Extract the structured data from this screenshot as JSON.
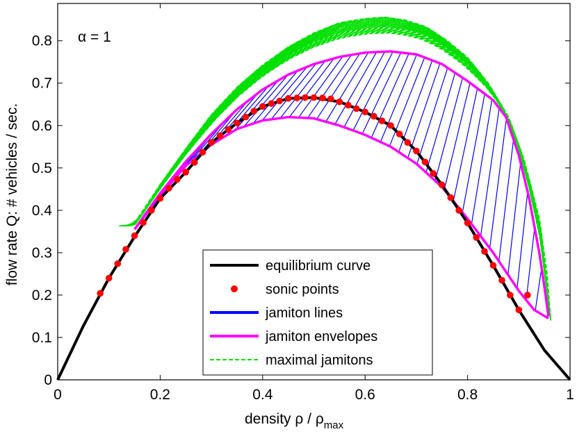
{
  "chart_data": {
    "type": "line",
    "annotation": "α = 1",
    "xlabel": "density ρ / ρ",
    "xlabel_sub": "max",
    "ylabel": "flow rate Q: # vehicles / sec.",
    "xlim": [
      0,
      1
    ],
    "ylim": [
      0,
      0.888
    ],
    "xticks": [
      "0",
      "0.2",
      "0.4",
      "0.6",
      "0.8",
      "1"
    ],
    "yticks": [
      "0",
      "0.1",
      "0.2",
      "0.3",
      "0.4",
      "0.5",
      "0.6",
      "0.7",
      "0.8"
    ],
    "colors": {
      "equilibrium": "#000000",
      "sonic": "#ff0000",
      "jamiton_lines": "#0000ff",
      "envelope": "#ff00ff",
      "maximal": "#00e000"
    },
    "series": [
      {
        "name": "equilibrium curve",
        "style": "solid",
        "x": [
          0,
          0.05,
          0.1,
          0.15,
          0.2,
          0.25,
          0.3,
          0.35,
          0.4,
          0.45,
          0.5,
          0.55,
          0.6,
          0.65,
          0.7,
          0.75,
          0.8,
          0.85,
          0.9,
          0.95,
          1.0
        ],
        "y": [
          0,
          0.127,
          0.24,
          0.338,
          0.428,
          0.49,
          0.56,
          0.606,
          0.645,
          0.664,
          0.666,
          0.656,
          0.632,
          0.6,
          0.54,
          0.46,
          0.37,
          0.27,
          0.165,
          0.07,
          0
        ]
      },
      {
        "name": "sonic points",
        "style": "markers",
        "x": [
          0.083,
          0.1,
          0.117,
          0.133,
          0.15,
          0.167,
          0.183,
          0.2,
          0.217,
          0.233,
          0.25,
          0.267,
          0.283,
          0.3,
          0.317,
          0.333,
          0.35,
          0.367,
          0.383,
          0.4,
          0.417,
          0.433,
          0.45,
          0.467,
          0.483,
          0.5,
          0.517,
          0.533,
          0.55,
          0.567,
          0.583,
          0.6,
          0.617,
          0.633,
          0.65,
          0.667,
          0.683,
          0.7,
          0.717,
          0.733,
          0.75,
          0.767,
          0.783,
          0.8,
          0.817,
          0.833,
          0.85,
          0.867,
          0.883,
          0.9,
          0.917
        ],
        "y": [
          0.204,
          0.24,
          0.274,
          0.308,
          0.34,
          0.371,
          0.4,
          0.428,
          0.452,
          0.473,
          0.49,
          0.513,
          0.537,
          0.56,
          0.576,
          0.591,
          0.606,
          0.62,
          0.634,
          0.645,
          0.652,
          0.658,
          0.664,
          0.665,
          0.666,
          0.666,
          0.665,
          0.663,
          0.656,
          0.648,
          0.64,
          0.632,
          0.622,
          0.611,
          0.6,
          0.58,
          0.56,
          0.54,
          0.514,
          0.487,
          0.46,
          0.43,
          0.4,
          0.37,
          0.336,
          0.303,
          0.27,
          0.235,
          0.2,
          0.165,
          0.2
        ]
      },
      {
        "name": "jamiton envelopes",
        "style": "solid",
        "upper": {
          "x": [
            0.15,
            0.2,
            0.25,
            0.3,
            0.35,
            0.4,
            0.45,
            0.5,
            0.55,
            0.6,
            0.65,
            0.7,
            0.75,
            0.8,
            0.85,
            0.875,
            0.9,
            0.92,
            0.94,
            0.95,
            0.958
          ],
          "y": [
            0.355,
            0.44,
            0.515,
            0.58,
            0.638,
            0.685,
            0.72,
            0.745,
            0.762,
            0.772,
            0.775,
            0.768,
            0.745,
            0.705,
            0.66,
            0.62,
            0.53,
            0.43,
            0.3,
            0.22,
            0.15
          ]
        },
        "lower": {
          "x": [
            0.15,
            0.2,
            0.25,
            0.3,
            0.35,
            0.4,
            0.45,
            0.5,
            0.55,
            0.6,
            0.65,
            0.7,
            0.75,
            0.8,
            0.85,
            0.9,
            0.93,
            0.958
          ],
          "y": [
            0.355,
            0.435,
            0.505,
            0.555,
            0.592,
            0.612,
            0.62,
            0.617,
            0.6,
            0.578,
            0.55,
            0.51,
            0.455,
            0.38,
            0.3,
            0.21,
            0.165,
            0.145
          ]
        }
      },
      {
        "name": "maximal jamitons",
        "style": "dashed",
        "upper": {
          "x": [
            0.15,
            0.2,
            0.25,
            0.3,
            0.35,
            0.4,
            0.45,
            0.5,
            0.55,
            0.6,
            0.64,
            0.68,
            0.72,
            0.76,
            0.8,
            0.84,
            0.88,
            0.91,
            0.94,
            0.955,
            0.962
          ],
          "y": [
            0.37,
            0.46,
            0.545,
            0.625,
            0.69,
            0.742,
            0.785,
            0.818,
            0.842,
            0.852,
            0.855,
            0.848,
            0.832,
            0.8,
            0.76,
            0.7,
            0.62,
            0.52,
            0.38,
            0.25,
            0.14
          ]
        },
        "lower": {
          "x": [
            0.15,
            0.962
          ],
          "y": [
            0.355,
            0.13
          ]
        }
      }
    ],
    "legend": {
      "position": "bottom-center",
      "entries": [
        {
          "label": "equilibrium curve",
          "style": "solid",
          "color": "#000000"
        },
        {
          "label": "sonic points",
          "style": "marker",
          "color": "#ff0000"
        },
        {
          "label": "jamiton lines",
          "style": "solid",
          "color": "#0000ff"
        },
        {
          "label": "jamiton envelopes",
          "style": "solid",
          "color": "#ff00ff"
        },
        {
          "label": "maximal jamitons",
          "style": "dashed",
          "color": "#00e000"
        }
      ]
    }
  }
}
